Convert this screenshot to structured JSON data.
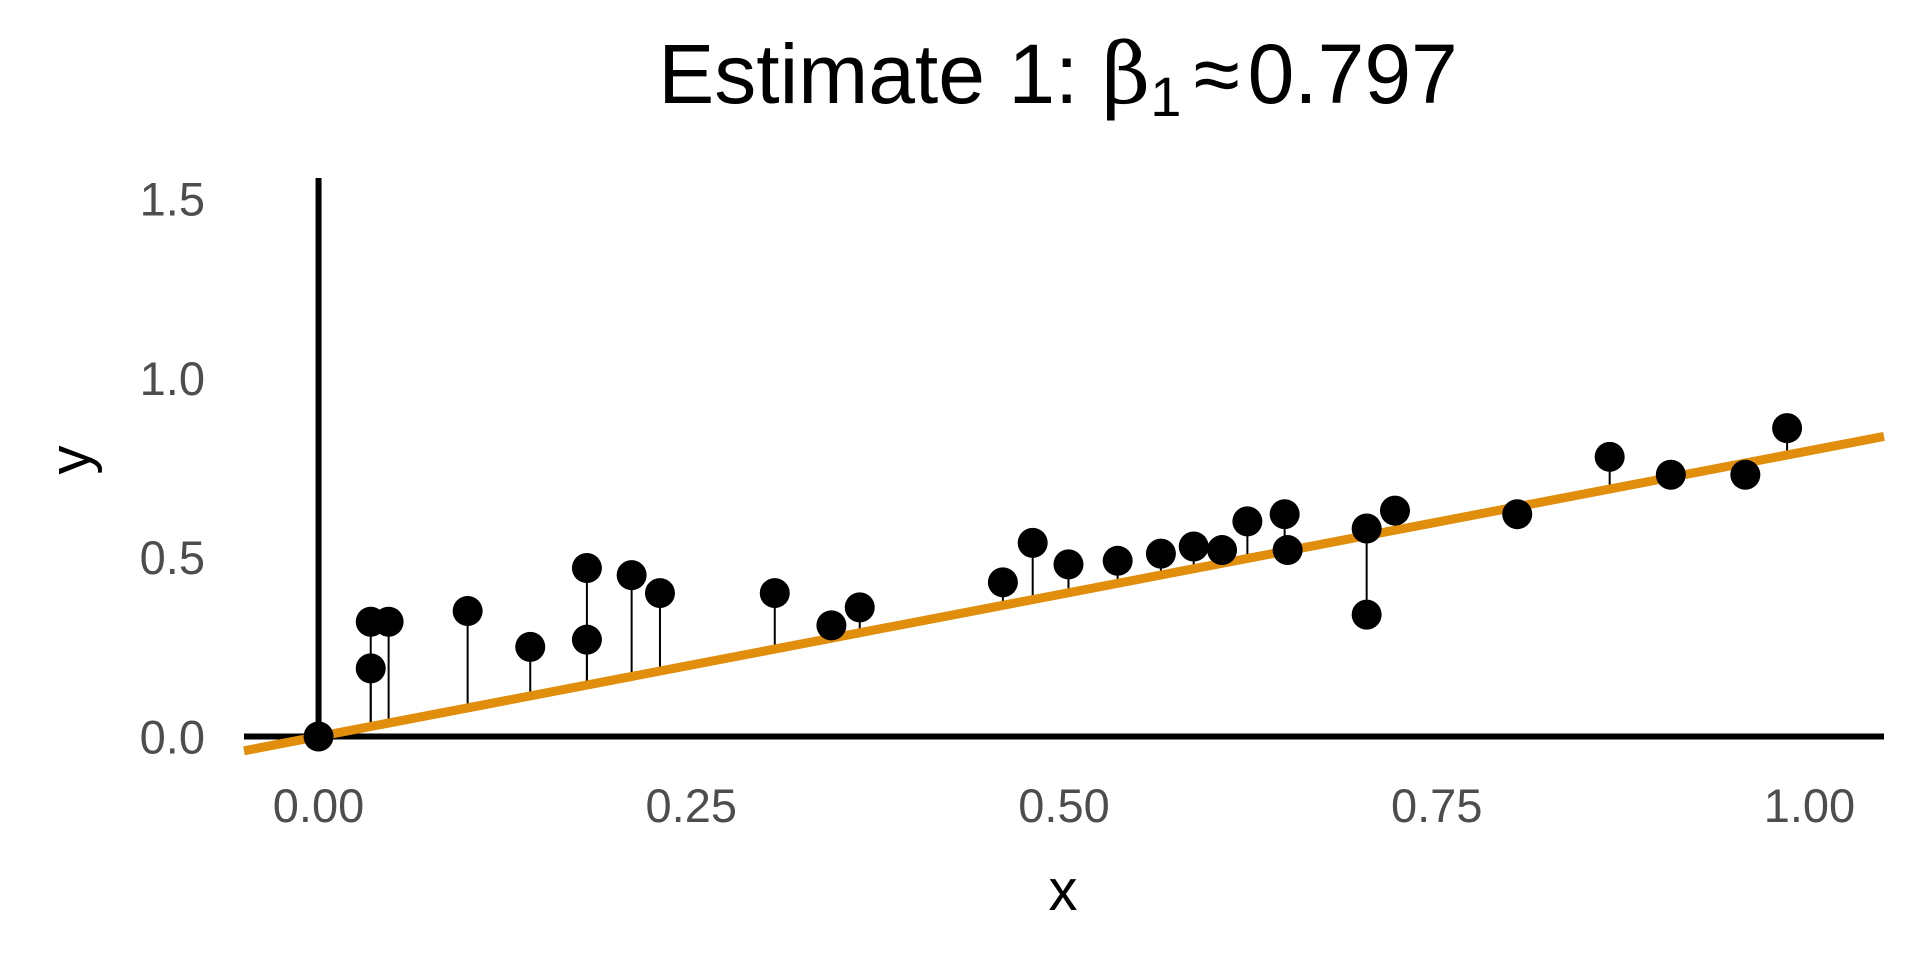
{
  "chart_data": {
    "type": "scatter",
    "title": {
      "prefix": "Estimate 1: ",
      "symbol": "β",
      "subscript": "1",
      "approx": "≈",
      "value": "0.797"
    },
    "xlabel": "x",
    "ylabel": "y",
    "xlim": [
      -0.05,
      1.05
    ],
    "ylim": [
      -0.06,
      1.58
    ],
    "x_ticks": [
      "0.00",
      "0.25",
      "0.50",
      "0.75",
      "1.00"
    ],
    "y_ticks": [
      "0.0",
      "0.5",
      "1.0",
      "1.5"
    ],
    "grid": false,
    "legend": "none",
    "fit_line": {
      "intercept": 0,
      "slope": 0.797,
      "color": "#E08E0B"
    },
    "residual_segments": true,
    "points": [
      {
        "x": 0.0,
        "y": 0.0
      },
      {
        "x": 0.035,
        "y": 0.32
      },
      {
        "x": 0.035,
        "y": 0.19
      },
      {
        "x": 0.047,
        "y": 0.32
      },
      {
        "x": 0.1,
        "y": 0.35
      },
      {
        "x": 0.142,
        "y": 0.25
      },
      {
        "x": 0.18,
        "y": 0.47
      },
      {
        "x": 0.18,
        "y": 0.27
      },
      {
        "x": 0.21,
        "y": 0.45
      },
      {
        "x": 0.229,
        "y": 0.4
      },
      {
        "x": 0.306,
        "y": 0.4
      },
      {
        "x": 0.344,
        "y": 0.31
      },
      {
        "x": 0.363,
        "y": 0.36
      },
      {
        "x": 0.459,
        "y": 0.43
      },
      {
        "x": 0.479,
        "y": 0.54
      },
      {
        "x": 0.503,
        "y": 0.48
      },
      {
        "x": 0.536,
        "y": 0.49
      },
      {
        "x": 0.565,
        "y": 0.51
      },
      {
        "x": 0.587,
        "y": 0.53
      },
      {
        "x": 0.606,
        "y": 0.52
      },
      {
        "x": 0.623,
        "y": 0.6
      },
      {
        "x": 0.648,
        "y": 0.62
      },
      {
        "x": 0.65,
        "y": 0.52
      },
      {
        "x": 0.703,
        "y": 0.58
      },
      {
        "x": 0.703,
        "y": 0.34
      },
      {
        "x": 0.722,
        "y": 0.63
      },
      {
        "x": 0.804,
        "y": 0.62
      },
      {
        "x": 0.866,
        "y": 0.78
      },
      {
        "x": 0.907,
        "y": 0.73
      },
      {
        "x": 0.957,
        "y": 0.73
      },
      {
        "x": 0.985,
        "y": 0.86
      }
    ],
    "colors": {
      "points": "#000000",
      "axes": "#000000",
      "residuals": "#000000",
      "tick_labels": "#4d4d4d"
    }
  }
}
